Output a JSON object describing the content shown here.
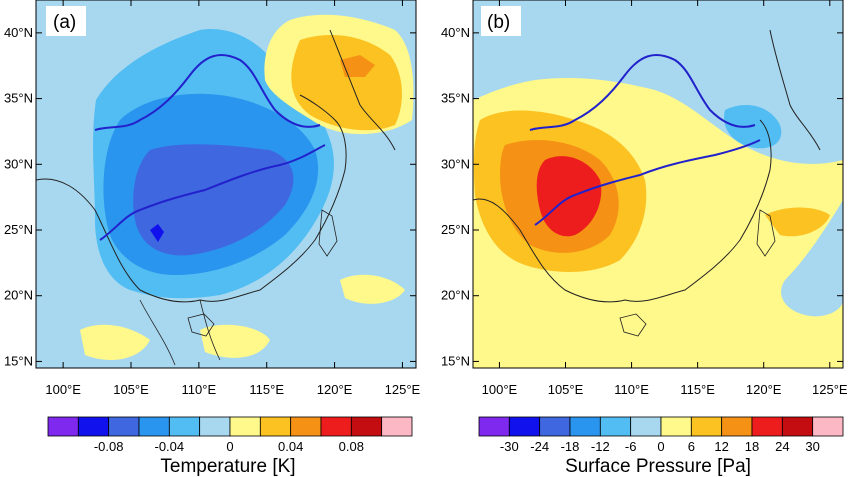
{
  "panels": [
    {
      "label": "(a)",
      "colorbar": {
        "title": "Temperature [K]",
        "colors": [
          "#7f28ee",
          "#1111ee",
          "#3f68e0",
          "#2a95ee",
          "#52bdf2",
          "#a8d8ef",
          "#fff88a",
          "#fbc222",
          "#f59216",
          "#ee1d1d",
          "#c40d10",
          "#fcb8c4"
        ],
        "tick_labels": [
          "-0.08",
          "-0.04",
          "0",
          "0.04",
          "0.08"
        ],
        "tick_positions": [
          2,
          4,
          6,
          8,
          10
        ]
      },
      "background": "#a8d8ef"
    },
    {
      "label": "(b)",
      "colorbar": {
        "title": "Surface Pressure [Pa]",
        "colors": [
          "#7f28ee",
          "#1111ee",
          "#3f68e0",
          "#2a95ee",
          "#52bdf2",
          "#a8d8ef",
          "#fff88a",
          "#fbc222",
          "#f59216",
          "#ee1d1d",
          "#c40d10",
          "#fcb8c4"
        ],
        "tick_labels": [
          "-30",
          "-24",
          "-18",
          "-12",
          "-6",
          "0",
          "6",
          "12",
          "18",
          "24",
          "30"
        ],
        "tick_positions": [
          1,
          2,
          3,
          4,
          5,
          6,
          7,
          8,
          9,
          10,
          11
        ]
      },
      "background": "#fff88a"
    }
  ],
  "axes": {
    "lon_ticks": [
      "100°E",
      "105°E",
      "110°E",
      "115°E",
      "120°E",
      "125°E"
    ],
    "lat_ticks": [
      "40°N",
      "35°N",
      "30°N",
      "25°N",
      "20°N",
      "15°N"
    ],
    "lon_values": [
      100,
      105,
      110,
      115,
      120,
      125
    ],
    "lat_values": [
      40,
      35,
      30,
      25,
      20,
      15
    ],
    "lon_range": [
      98,
      126
    ],
    "lat_range": [
      14.5,
      42.5
    ]
  }
}
